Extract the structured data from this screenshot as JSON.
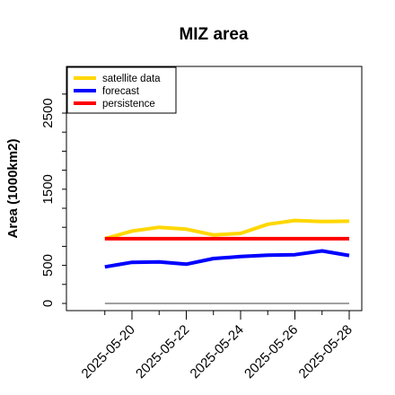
{
  "chart_data": {
    "type": "line",
    "title": "MIZ area",
    "xlabel": "",
    "ylabel": "Area (1000km2)",
    "x": [
      "2025-05-19",
      "2025-05-20",
      "2025-05-21",
      "2025-05-22",
      "2025-05-23",
      "2025-05-24",
      "2025-05-25",
      "2025-05-26",
      "2025-05-27",
      "2025-05-28"
    ],
    "x_tick_labels": [
      "2025-05-20",
      "2025-05-22",
      "2025-05-24",
      "2025-05-26",
      "2025-05-28"
    ],
    "x_tick_colors": [
      "#228B22",
      "#000000",
      "#000000",
      "#000000",
      "#000000"
    ],
    "ylim": [
      0,
      3000
    ],
    "y_tick_labels": [
      "0",
      "500",
      "1500",
      "2500"
    ],
    "legend_position": "top-left",
    "grid": false,
    "series": [
      {
        "name": "satellite data",
        "color": "#FFD700",
        "values": [
          850,
          950,
          1000,
          975,
          900,
          920,
          1040,
          1090,
          1075,
          1080
        ]
      },
      {
        "name": "forecast",
        "color": "#0000FF",
        "values": [
          480,
          540,
          545,
          515,
          590,
          615,
          635,
          640,
          690,
          630
        ]
      },
      {
        "name": "persistence",
        "color": "#FF0000",
        "values": [
          850,
          850,
          850,
          850,
          850,
          850,
          850,
          850,
          850,
          850
        ]
      }
    ],
    "baseline": {
      "color": "#808080",
      "values": [
        0,
        0,
        0,
        0,
        0,
        0,
        0,
        0,
        0,
        0
      ]
    }
  }
}
